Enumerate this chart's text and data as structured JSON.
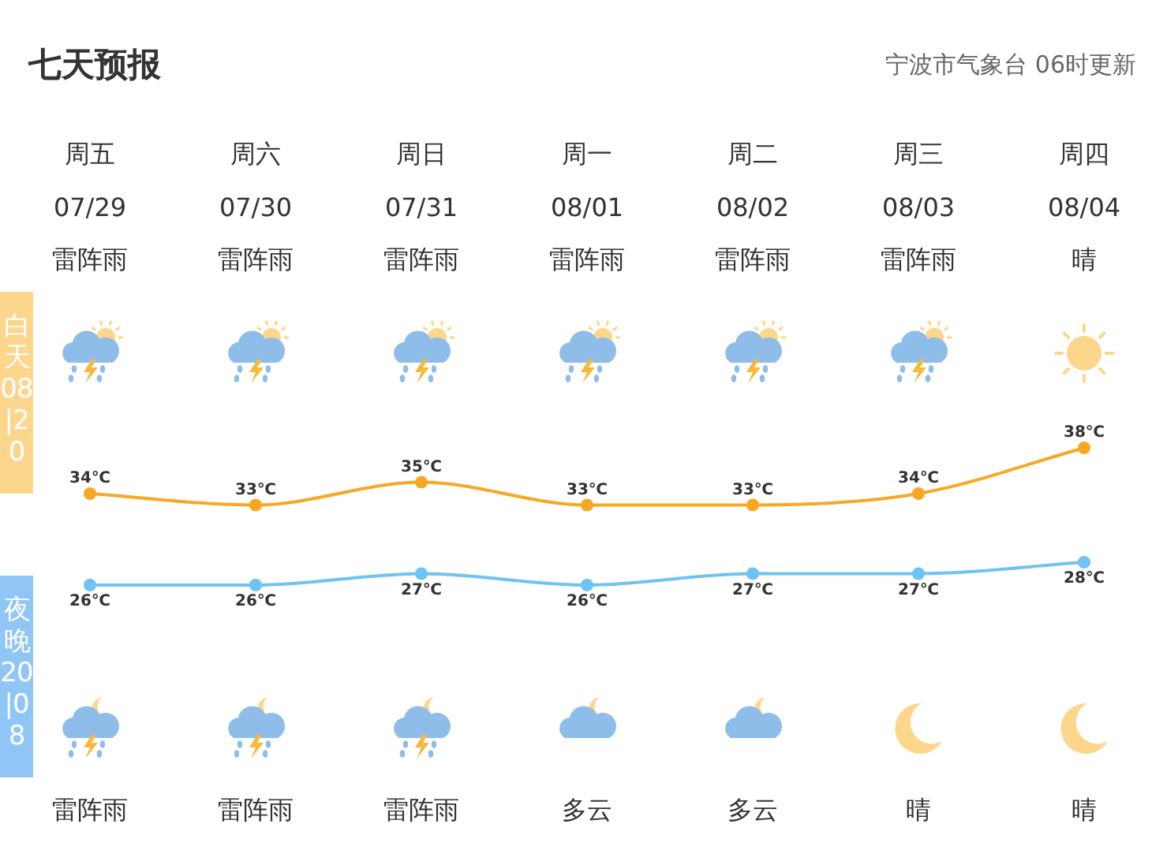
{
  "chart_data": {
    "type": "line",
    "title": "七天预报",
    "subtitle": "宁波市气象台 06时更新",
    "categories": [
      "周五",
      "周六",
      "周日",
      "周一",
      "周二",
      "周三",
      "周四"
    ],
    "annotations": [
      "07/29",
      "07/30",
      "07/31",
      "08/01",
      "08/02",
      "08/03",
      "08/04",
      "雷阵雨",
      "雷阵雨",
      "雷阵雨",
      "雷阵雨",
      "雷阵雨",
      "雷阵雨",
      "晴",
      "雷阵雨",
      "雷阵雨",
      "雷阵雨",
      "多云",
      "多云",
      "晴",
      "晴"
    ],
    "marker": "circle",
    "line_style": "solid",
    "series": [
      {
        "name": "白天08|20",
        "color": "#f7a823",
        "values": [
          34,
          33,
          35,
          33,
          33,
          34,
          38
        ],
        "value_labels": [
          "34℃",
          "33℃",
          "35℃",
          "33℃",
          "33℃",
          "34℃",
          "38℃"
        ]
      },
      {
        "name": "夜晚20|08",
        "color": "#6ec3f2",
        "values": [
          26,
          26,
          27,
          26,
          27,
          27,
          28
        ],
        "value_labels": [
          "26℃",
          "26℃",
          "27℃",
          "26℃",
          "27℃",
          "27℃",
          "28℃"
        ]
      }
    ]
  }
}
